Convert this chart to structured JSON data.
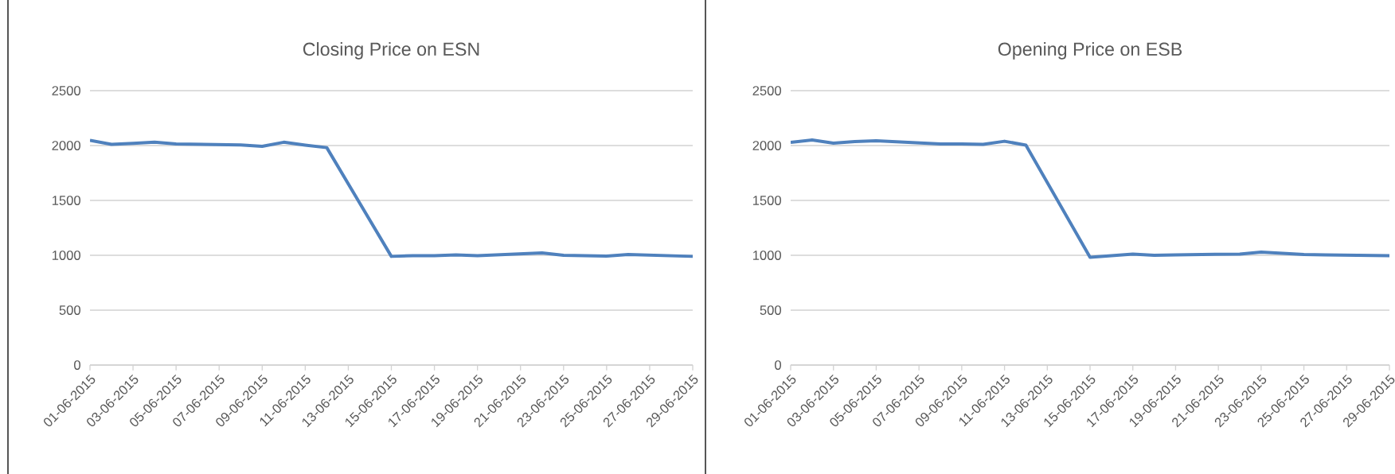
{
  "chart_data": [
    {
      "type": "line",
      "title": "Closing Price on ESN",
      "color": "#4f81bd",
      "grid": "y",
      "x": [
        "2015-06-01",
        "2015-06-02",
        "2015-06-03",
        "2015-06-04",
        "2015-06-05",
        "2015-06-08",
        "2015-06-09",
        "2015-06-10",
        "2015-06-11",
        "2015-06-12",
        "2015-06-15",
        "2015-06-16",
        "2015-06-17",
        "2015-06-18",
        "2015-06-19",
        "2015-06-22",
        "2015-06-23",
        "2015-06-24",
        "2015-06-25",
        "2015-06-26",
        "2015-06-29"
      ],
      "values": [
        2048,
        2011,
        2020,
        2030,
        2015,
        2005,
        1993,
        2030,
        2004,
        1981,
        990,
        996,
        996,
        1004,
        996,
        1022,
        1000,
        996,
        993,
        1007,
        990
      ],
      "xlim": [
        "2015-06-01",
        "2015-06-29"
      ],
      "xticks": [
        {
          "value": "2015-06-01",
          "label": "01-06-2015"
        },
        {
          "value": "2015-06-03",
          "label": "03-06-2015"
        },
        {
          "value": "2015-06-05",
          "label": "05-06-2015"
        },
        {
          "value": "2015-06-07",
          "label": "07-06-2015"
        },
        {
          "value": "2015-06-09",
          "label": "09-06-2015"
        },
        {
          "value": "2015-06-11",
          "label": "11-06-2015"
        },
        {
          "value": "2015-06-13",
          "label": "13-06-2015"
        },
        {
          "value": "2015-06-15",
          "label": "15-06-2015"
        },
        {
          "value": "2015-06-17",
          "label": "17-06-2015"
        },
        {
          "value": "2015-06-19",
          "label": "19-06-2015"
        },
        {
          "value": "2015-06-21",
          "label": "21-06-2015"
        },
        {
          "value": "2015-06-23",
          "label": "23-06-2015"
        },
        {
          "value": "2015-06-25",
          "label": "25-06-2015"
        },
        {
          "value": "2015-06-27",
          "label": "27-06-2015"
        },
        {
          "value": "2015-06-29",
          "label": "29-06-2015"
        }
      ],
      "ylim": [
        0,
        2500
      ],
      "yticks": [
        0,
        500,
        1000,
        1500,
        2000,
        2500
      ]
    },
    {
      "type": "line",
      "title": "Opening Price on ESB",
      "color": "#4f81bd",
      "grid": "y",
      "x": [
        "2015-06-01",
        "2015-06-02",
        "2015-06-03",
        "2015-06-04",
        "2015-06-05",
        "2015-06-08",
        "2015-06-09",
        "2015-06-10",
        "2015-06-11",
        "2015-06-12",
        "2015-06-15",
        "2015-06-16",
        "2015-06-17",
        "2015-06-18",
        "2015-06-19",
        "2015-06-22",
        "2015-06-23",
        "2015-06-24",
        "2015-06-25",
        "2015-06-26",
        "2015-06-29"
      ],
      "values": [
        2029,
        2050,
        2021,
        2036,
        2043,
        2014,
        2014,
        2011,
        2039,
        2004,
        982,
        996,
        1011,
        1000,
        1004,
        1011,
        1029,
        1018,
        1007,
        1004,
        996
      ],
      "xlim": [
        "2015-06-01",
        "2015-06-29"
      ],
      "xticks": [
        {
          "value": "2015-06-01",
          "label": "01-06-2015"
        },
        {
          "value": "2015-06-03",
          "label": "03-06-2015"
        },
        {
          "value": "2015-06-05",
          "label": "05-06-2015"
        },
        {
          "value": "2015-06-07",
          "label": "07-06-2015"
        },
        {
          "value": "2015-06-09",
          "label": "09-06-2015"
        },
        {
          "value": "2015-06-11",
          "label": "11-06-2015"
        },
        {
          "value": "2015-06-13",
          "label": "13-06-2015"
        },
        {
          "value": "2015-06-15",
          "label": "15-06-2015"
        },
        {
          "value": "2015-06-17",
          "label": "17-06-2015"
        },
        {
          "value": "2015-06-19",
          "label": "19-06-2015"
        },
        {
          "value": "2015-06-21",
          "label": "21-06-2015"
        },
        {
          "value": "2015-06-23",
          "label": "23-06-2015"
        },
        {
          "value": "2015-06-25",
          "label": "25-06-2015"
        },
        {
          "value": "2015-06-27",
          "label": "27-06-2015"
        },
        {
          "value": "2015-06-29",
          "label": "29-06-2015"
        }
      ],
      "ylim": [
        0,
        2500
      ],
      "yticks": [
        0,
        500,
        1000,
        1500,
        2000,
        2500
      ]
    }
  ]
}
